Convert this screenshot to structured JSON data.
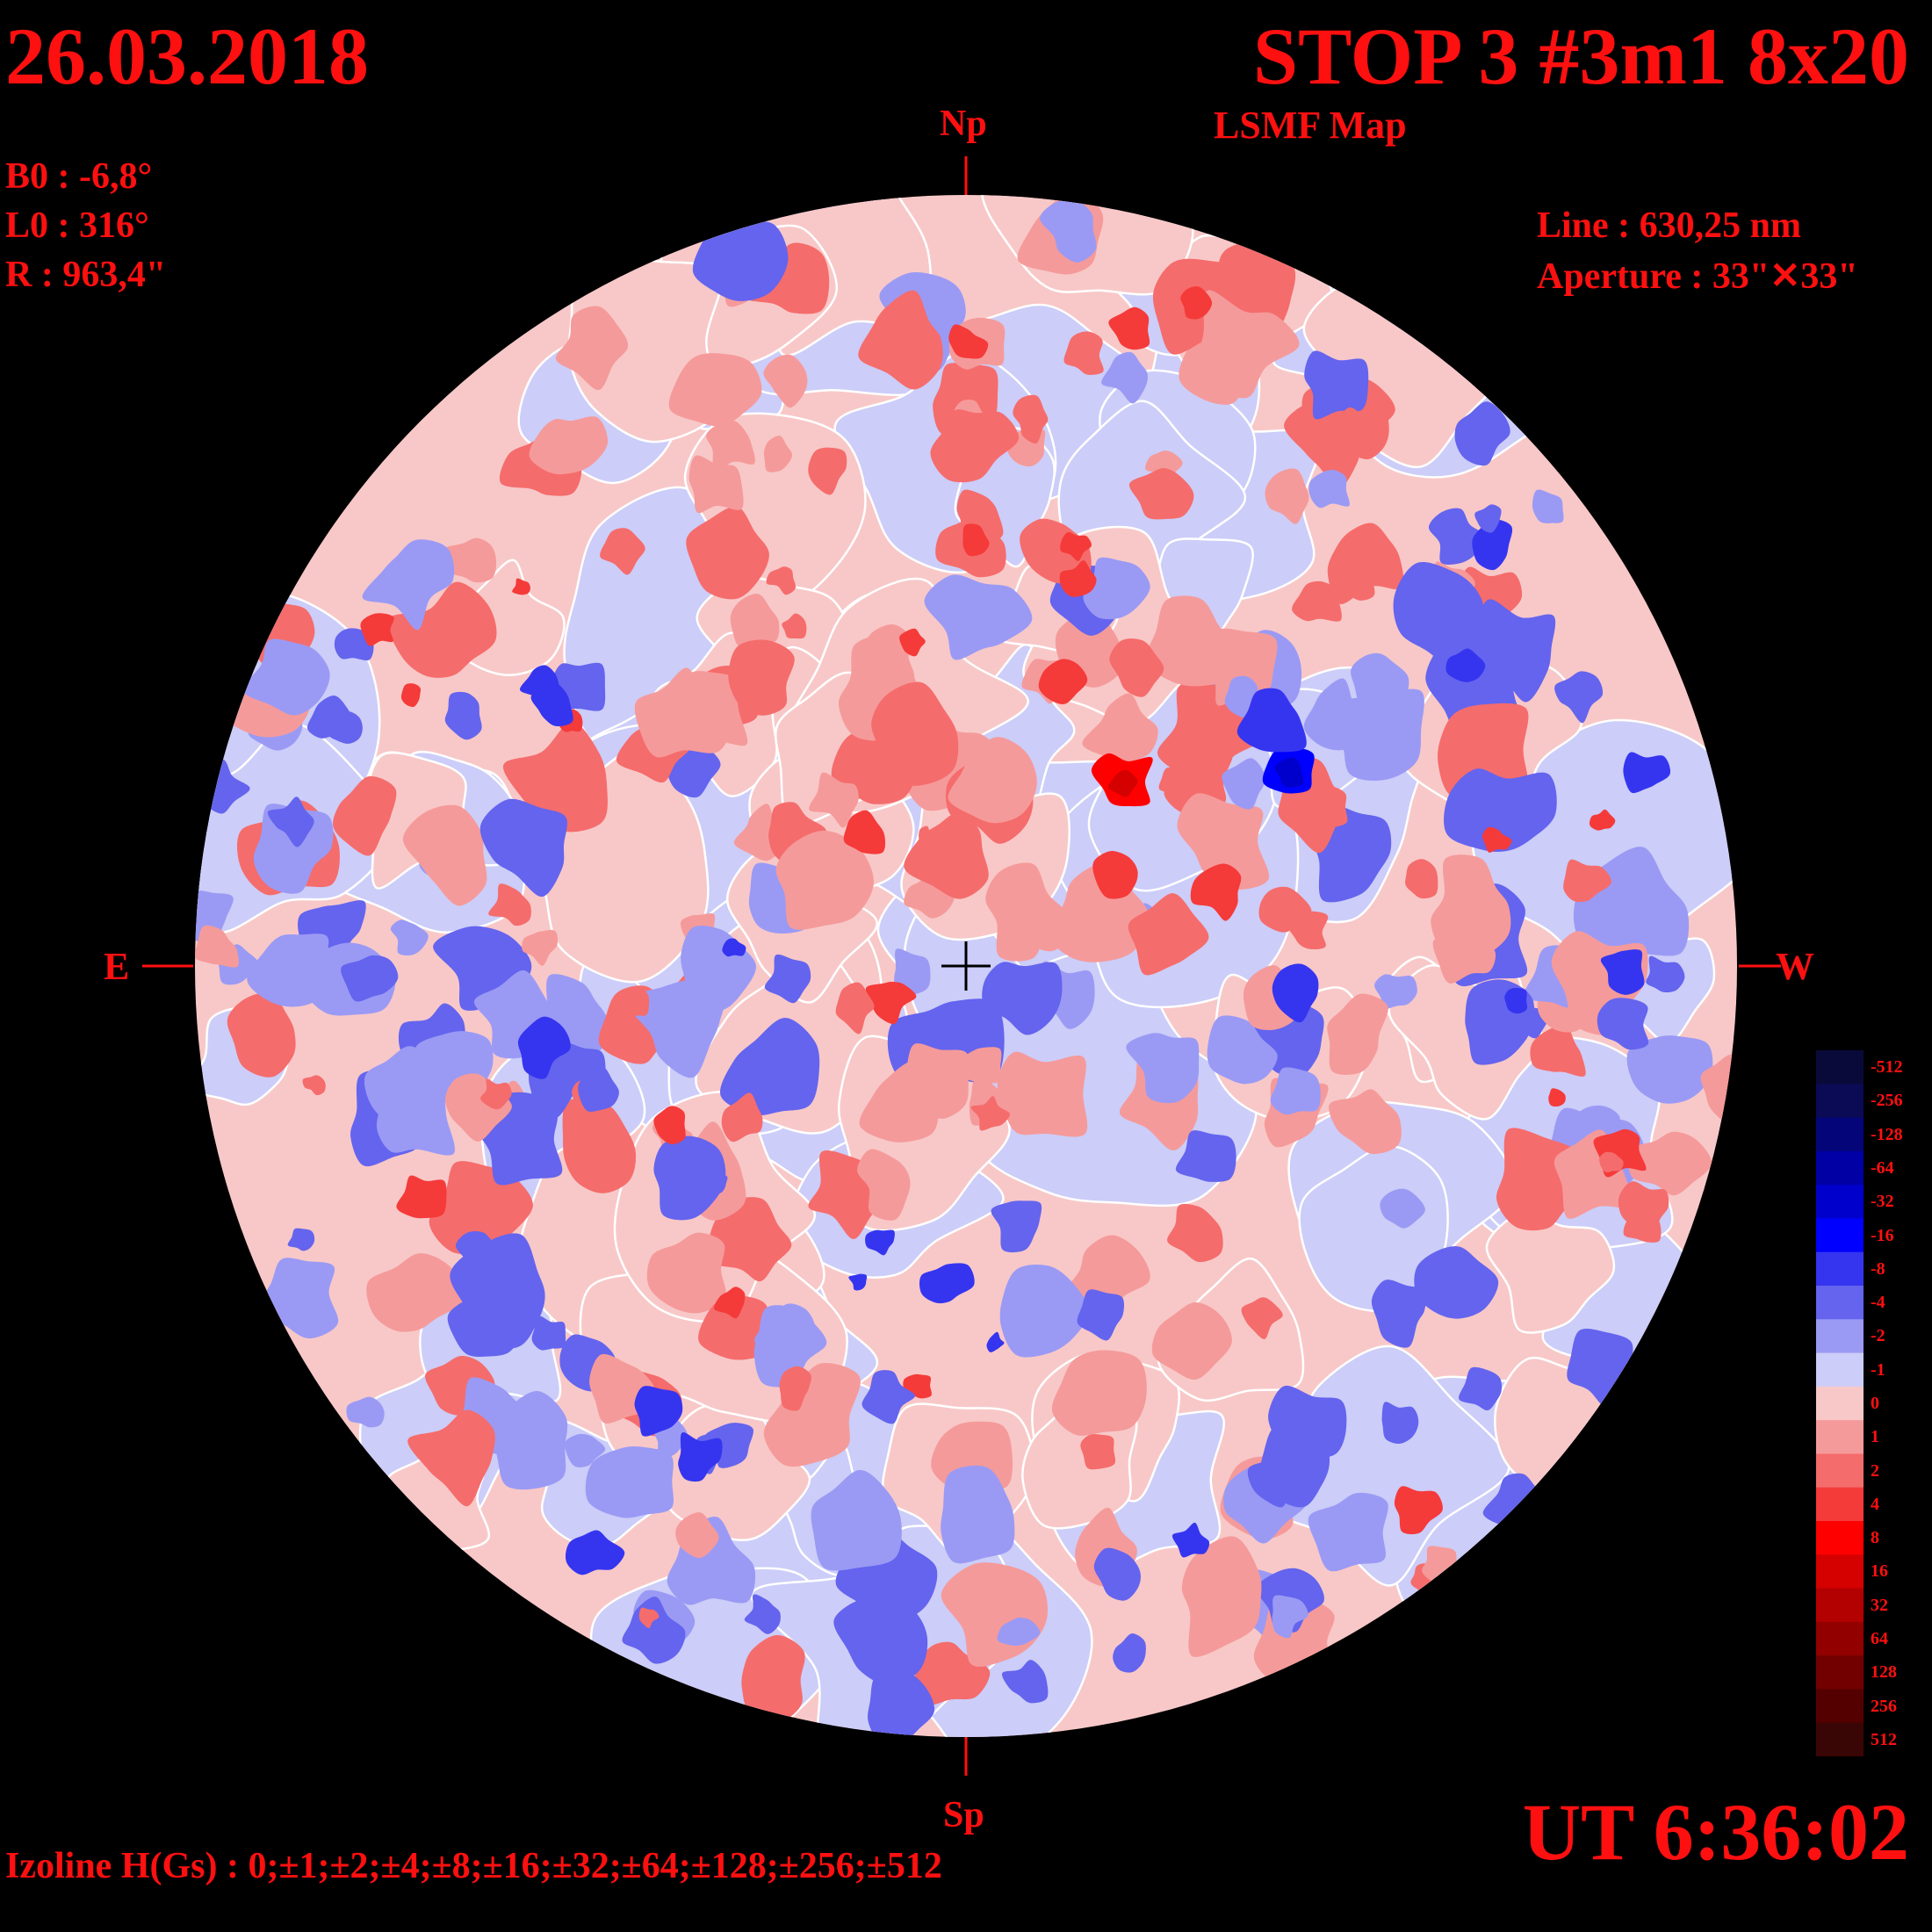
{
  "header": {
    "date": "26.03.2018",
    "title": "STOP 3 #3m1 8x20",
    "subtitle": "LSMF  Map"
  },
  "params": {
    "b0": "B0 : -6,8°",
    "l0": "L0 : 316°",
    "r": "R  : 963,4\"",
    "line": "Line :  630,25 nm",
    "aperture": "Aperture : 33\"✕33\""
  },
  "directions": {
    "north": "Np",
    "south": "Sp",
    "east": "E",
    "west": "W"
  },
  "footer": {
    "izoline": "Izoline H(Gs) : 0;±1;±2;±4;±8;±16;±32;±64;±128;±256;±512",
    "time": "UT 6:36:02"
  },
  "colors": {
    "text": "#ff1010",
    "background": "#000000",
    "isoline_zero": "#ffffff"
  },
  "legend": {
    "labels": [
      "-512",
      "-256",
      "-128",
      "-64",
      "-32",
      "-16",
      "-8",
      "-4",
      "-2",
      "-1",
      "0",
      "1",
      "2",
      "4",
      "8",
      "16",
      "32",
      "64",
      "128",
      "256",
      "512"
    ],
    "colors": [
      "#0a0a3a",
      "#0a0a55",
      "#05057a",
      "#0000a5",
      "#0000cc",
      "#0000ff",
      "#3535f0",
      "#6464ee",
      "#9a9af5",
      "#cccdf8",
      "#f8c8c8",
      "#f59a9a",
      "#f56c6c",
      "#f53a3a",
      "#ff0000",
      "#d50000",
      "#b30000",
      "#920000",
      "#730000",
      "#550000",
      "#3a0505"
    ]
  }
}
